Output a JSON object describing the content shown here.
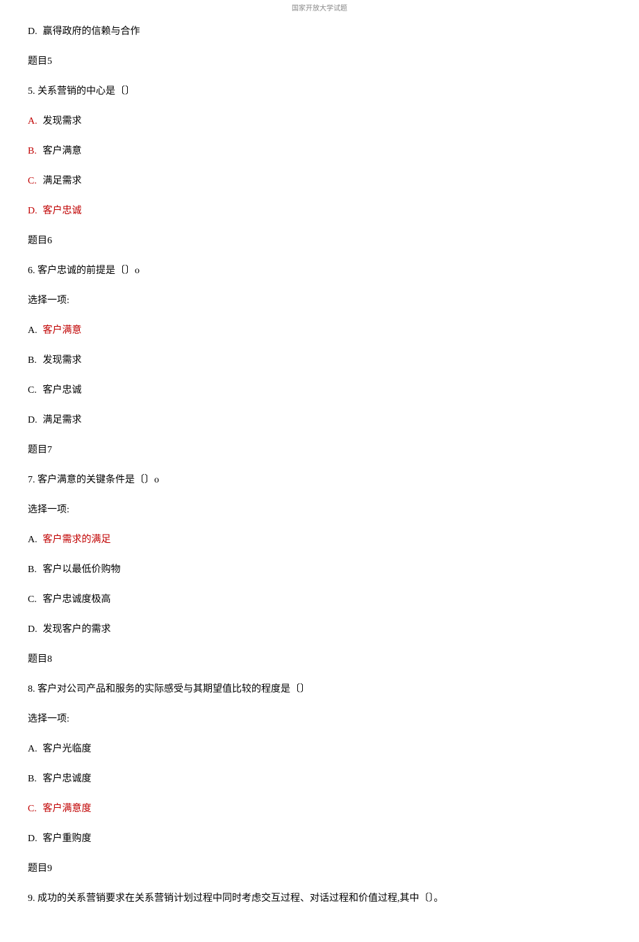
{
  "header": "国家开放大学试题",
  "items": [
    {
      "type": "option",
      "label": "D.",
      "text": "赢得政府的信赖与合作",
      "labelRed": false,
      "textRed": false
    },
    {
      "type": "heading",
      "text": "题目5"
    },
    {
      "type": "question",
      "text": "5. 关系营销的中心是〔〕"
    },
    {
      "type": "option",
      "label": "A.",
      "text": "发现需求",
      "labelRed": true,
      "textRed": false
    },
    {
      "type": "option",
      "label": "B.",
      "text": "客户满意",
      "labelRed": true,
      "textRed": false
    },
    {
      "type": "option",
      "label": "C.",
      "text": "满足需求",
      "labelRed": true,
      "textRed": false
    },
    {
      "type": "option",
      "label": "D.",
      "text": "客户忠诚",
      "labelRed": true,
      "textRed": true
    },
    {
      "type": "heading",
      "text": "题目6"
    },
    {
      "type": "question",
      "text": "6. 客户忠诚的前提是〔〕o"
    },
    {
      "type": "plain",
      "text": "选择一项:"
    },
    {
      "type": "option",
      "label": "A.",
      "text": "客户满意",
      "labelRed": false,
      "textRed": true
    },
    {
      "type": "option",
      "label": "B.",
      "text": "发现需求",
      "labelRed": false,
      "textRed": false
    },
    {
      "type": "option",
      "label": "C.",
      "text": "客户忠诚",
      "labelRed": false,
      "textRed": false
    },
    {
      "type": "option",
      "label": "D.",
      "text": "满足需求",
      "labelRed": false,
      "textRed": false
    },
    {
      "type": "heading",
      "text": "题目7"
    },
    {
      "type": "question",
      "text": "7. 客户满意的关键条件是〔〕o"
    },
    {
      "type": "plain",
      "text": "选择一项:"
    },
    {
      "type": "option",
      "label": "A.",
      "text": "客户需求的满足",
      "labelRed": false,
      "textRed": true
    },
    {
      "type": "option",
      "label": "B.",
      "text": "客户以最低价购物",
      "labelRed": false,
      "textRed": false
    },
    {
      "type": "option",
      "label": "C.",
      "text": "客户忠诚度极高",
      "labelRed": false,
      "textRed": false
    },
    {
      "type": "option",
      "label": "D.",
      "text": "发现客户的需求",
      "labelRed": false,
      "textRed": false
    },
    {
      "type": "heading",
      "text": "题目8"
    },
    {
      "type": "question",
      "text": "8. 客户对公司产品和服务的实际感受与其期望值比较的程度是〔〕"
    },
    {
      "type": "plain",
      "text": "选择一项:"
    },
    {
      "type": "option",
      "label": "A.",
      "text": "客户光临度",
      "labelRed": false,
      "textRed": false
    },
    {
      "type": "option",
      "label": "B.",
      "text": "客户忠诚度",
      "labelRed": false,
      "textRed": false
    },
    {
      "type": "option",
      "label": "C.",
      "text": "客户满意度",
      "labelRed": true,
      "textRed": true
    },
    {
      "type": "option",
      "label": "D.",
      "text": "客户重购度",
      "labelRed": false,
      "textRed": false
    },
    {
      "type": "heading",
      "text": "题目9"
    },
    {
      "type": "question",
      "text": "9. 成功的关系营销要求在关系营销计划过程中同时考虑交互过程、对话过程和价值过程,其中〔〕。"
    }
  ]
}
